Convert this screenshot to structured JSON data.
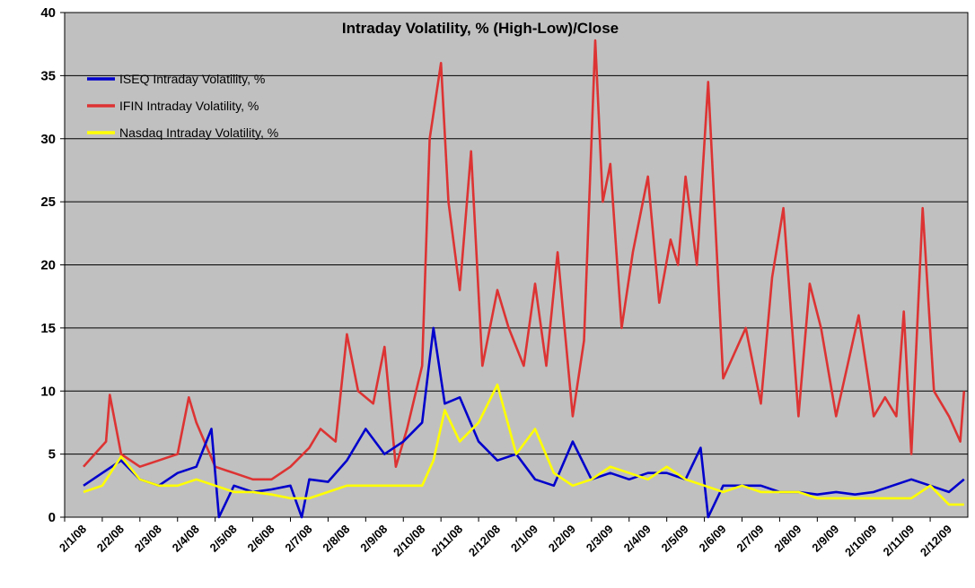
{
  "chart_data": {
    "type": "line",
    "title": "Intraday Volatility, % (High-Low)/Close",
    "xlabel": "",
    "ylabel": "",
    "ylim": [
      0,
      40
    ],
    "yticks": [
      "0",
      "5",
      "10",
      "15",
      "20",
      "25",
      "30",
      "35",
      "40"
    ],
    "grid": true,
    "legend_position": "top-left",
    "categories": [
      "2/1/08",
      "2/2/08",
      "2/3/08",
      "2/4/08",
      "2/5/08",
      "2/6/08",
      "2/7/08",
      "2/8/08",
      "2/9/08",
      "2/10/08",
      "2/11/08",
      "2/12/08",
      "2/1/09",
      "2/2/09",
      "2/3/09",
      "2/4/09",
      "2/5/09",
      "2/6/09",
      "2/7/09",
      "2/8/09",
      "2/9/09",
      "2/10/09",
      "2/11/09",
      "2/12/09"
    ],
    "series": [
      {
        "name": "ISEQ Intraday Volatility, %",
        "color": "#0000cc",
        "x": [
          0,
          0.5,
          1,
          1.5,
          2,
          2.5,
          3,
          3.4,
          3.6,
          4,
          4.5,
          5,
          5.5,
          5.8,
          6,
          6.5,
          7,
          7.5,
          8,
          8.5,
          9,
          9.3,
          9.6,
          10,
          10.5,
          11,
          11.5,
          12,
          12.5,
          13,
          13.5,
          14,
          14.5,
          15,
          15.5,
          16,
          16.4,
          16.6,
          17,
          17.5,
          18,
          18.5,
          19,
          19.5,
          20,
          20.5,
          21,
          21.5,
          22,
          22.5,
          23,
          23.4
        ],
        "values": [
          2.5,
          3.5,
          4.5,
          3,
          2.5,
          3.5,
          4,
          7,
          0,
          2.5,
          2,
          2.2,
          2.5,
          0,
          3,
          2.8,
          4.5,
          7,
          5,
          6,
          7.5,
          15,
          9,
          9.5,
          6,
          4.5,
          5,
          3,
          2.5,
          6,
          3,
          3.5,
          3,
          3.5,
          3.5,
          3,
          5.5,
          0,
          2.5,
          2.5,
          2.5,
          2,
          2,
          1.8,
          2,
          1.8,
          2,
          2.5,
          3,
          2.5,
          2,
          3
        ]
      },
      {
        "name": "IFIN Intraday Volatility, %",
        "color": "#dd3333",
        "x": [
          0,
          0.3,
          0.6,
          0.7,
          1,
          1.5,
          2,
          2.5,
          2.8,
          3,
          3.5,
          4,
          4.5,
          5,
          5.5,
          6,
          6.3,
          6.7,
          7,
          7.3,
          7.7,
          8,
          8.3,
          8.6,
          9,
          9.2,
          9.5,
          9.7,
          10,
          10.3,
          10.6,
          11,
          11.3,
          11.7,
          12,
          12.3,
          12.6,
          13,
          13.3,
          13.6,
          13.8,
          14,
          14.3,
          14.6,
          15,
          15.3,
          15.6,
          15.8,
          16,
          16.3,
          16.6,
          17,
          17.3,
          17.6,
          18,
          18.3,
          18.6,
          19,
          19.3,
          19.6,
          20,
          20.3,
          20.6,
          21,
          21.3,
          21.6,
          21.8,
          22,
          22.3,
          22.6,
          23,
          23.3,
          23.4
        ],
        "values": [
          4,
          5,
          6,
          9.7,
          5,
          4,
          4.5,
          5,
          9.5,
          7.5,
          4,
          3.5,
          3,
          3,
          4,
          5.5,
          7,
          6,
          14.5,
          10,
          9,
          13.5,
          4,
          7,
          12,
          30,
          36,
          25,
          18,
          29,
          12,
          18,
          15,
          12,
          18.5,
          12,
          21,
          8,
          14,
          37.8,
          25,
          28,
          15,
          21,
          27,
          17,
          22,
          20,
          27,
          20,
          34.5,
          11,
          13,
          15,
          9,
          19,
          24.5,
          8,
          18.5,
          15,
          8,
          12,
          16,
          8,
          9.5,
          8,
          16.3,
          5,
          24.5,
          10,
          8,
          6,
          10
        ]
      },
      {
        "name": "Nasdaq Intraday Volatility, %",
        "color": "#ffff00",
        "x": [
          0,
          0.5,
          1,
          1.5,
          2,
          2.5,
          3,
          3.5,
          4,
          4.5,
          5,
          5.5,
          6,
          6.5,
          7,
          7.5,
          8,
          8.5,
          9,
          9.3,
          9.6,
          10,
          10.5,
          11,
          11.5,
          12,
          12.5,
          13,
          13.5,
          14,
          14.5,
          15,
          15.5,
          16,
          16.5,
          17,
          17.5,
          18,
          18.5,
          19,
          19.5,
          20,
          20.5,
          21,
          21.5,
          22,
          22.5,
          23,
          23.4
        ],
        "values": [
          2,
          2.5,
          4.8,
          3,
          2.5,
          2.5,
          3,
          2.5,
          2,
          2,
          1.8,
          1.5,
          1.5,
          2,
          2.5,
          2.5,
          2.5,
          2.5,
          2.5,
          4.5,
          8.5,
          6,
          7.5,
          10.5,
          5,
          7,
          3.5,
          2.5,
          3,
          4,
          3.5,
          3,
          4,
          3,
          2.5,
          2,
          2.5,
          2,
          2,
          2,
          1.5,
          1.5,
          1.5,
          1.5,
          1.5,
          1.5,
          2.5,
          1,
          1
        ]
      }
    ]
  }
}
